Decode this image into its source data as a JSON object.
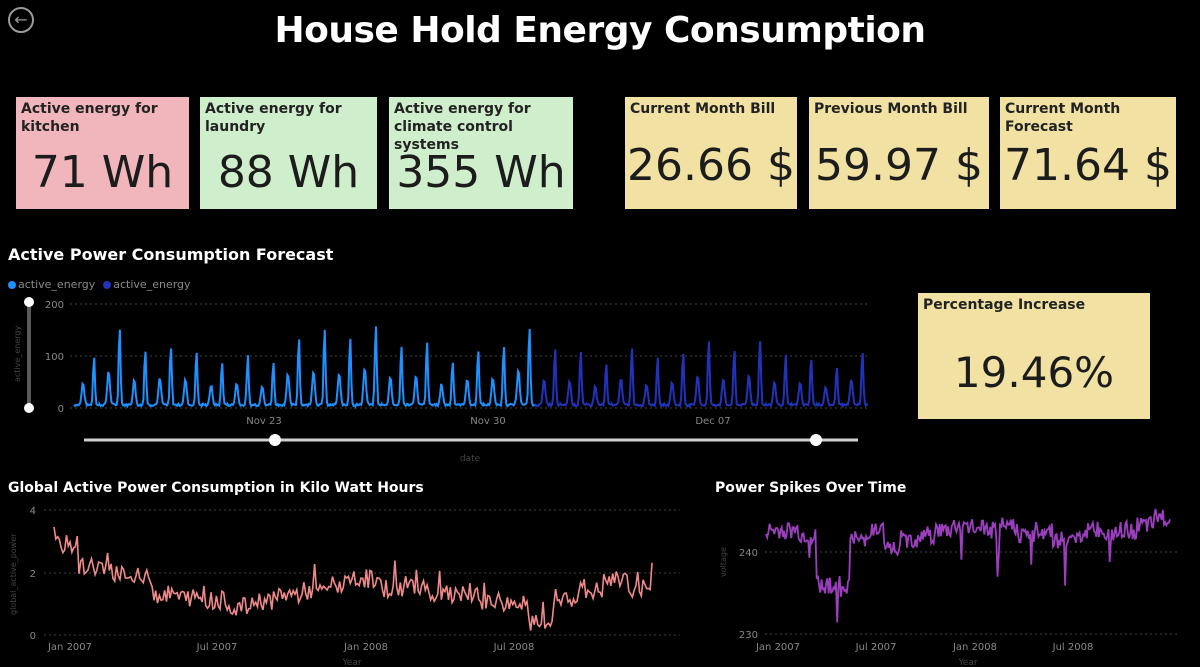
{
  "header": {
    "title": "House Hold Energy Consumption",
    "back_icon": "arrow-left-circle-icon"
  },
  "kpis": {
    "kitchen": {
      "label": "Active energy for kitchen",
      "value": "71 Wh",
      "color": "#f0b6bc"
    },
    "laundry": {
      "label": "Active energy for laundry",
      "value": "88 Wh",
      "color": "#cfeecb"
    },
    "climate": {
      "label": "Active energy for climate control systems",
      "value": "355 Wh",
      "color": "#cfeecb"
    },
    "current_bill": {
      "label": "Current Month Bill",
      "value": "26.66 $",
      "color": "#f1e1a2"
    },
    "previous_bill": {
      "label": "Previous Month Bill",
      "value": "59.97 $",
      "color": "#f1e1a2"
    },
    "forecast_bill": {
      "label": "Current Month Forecast",
      "value": "71.64 $",
      "color": "#f1e1a2"
    },
    "percentage": {
      "label": "Percentage Increase",
      "value": "19.46%",
      "color": "#f1e1a2"
    }
  },
  "forecast_chart": {
    "title": "Active Power Consumption Forecast",
    "legend": [
      {
        "name": "active_energy",
        "color": "#1e90ff"
      },
      {
        "name": "active_energy",
        "color": "#2233bb"
      }
    ],
    "ylabel": "active_energy",
    "xlabel": "date",
    "yticks": [
      "0",
      "100",
      "200"
    ],
    "xticks": [
      "Nov 23",
      "Nov 30",
      "Dec 07"
    ]
  },
  "global_chart": {
    "title": "Global Active Power Consumption in Kilo Watt Hours",
    "ylabel": "global_active_power",
    "xlabel": "Year",
    "yticks": [
      "0",
      "2",
      "4"
    ],
    "xticks": [
      "Jan 2007",
      "Jul 2007",
      "Jan 2008",
      "Jul 2008"
    ]
  },
  "spikes_chart": {
    "title": "Power Spikes Over Time",
    "ylabel": "voltage",
    "xlabel": "Year",
    "yticks": [
      "230",
      "240"
    ],
    "xticks": [
      "Jan 2007",
      "Jul 2007",
      "Jan 2008",
      "Jul 2008"
    ]
  },
  "chart_data": [
    {
      "type": "line",
      "title": "Active Power Consumption Forecast",
      "xlabel": "date",
      "ylabel": "active_energy",
      "ylim": [
        0,
        200
      ],
      "x_range": [
        "Nov 16",
        "Dec 14"
      ],
      "series": [
        {
          "name": "active_energy",
          "color": "#1e90ff",
          "daily_peaks": [
            95,
            150,
            108,
            115,
            110,
            85,
            95,
            85,
            135,
            150,
            135,
            160,
            120,
            125,
            90,
            112,
            115,
            155
          ]
        },
        {
          "name": "active_energy",
          "color": "#2233bb",
          "daily_peaks": [
            110,
            105,
            80,
            115,
            90,
            100,
            130,
            110,
            130,
            100,
            95,
            80,
            110
          ]
        }
      ]
    },
    {
      "type": "line",
      "title": "Global Active Power Consumption in Kilo Watt Hours",
      "xlabel": "Year",
      "ylabel": "global_active_power",
      "ylim": [
        0,
        4
      ],
      "x_range": [
        "Dec 2006",
        "Nov 2008"
      ],
      "series": [
        {
          "name": "global_active_power",
          "color": "#f08a8a",
          "monthly_mean": [
            2.9,
            2.2,
            2.0,
            1.8,
            1.3,
            1.2,
            1.1,
            0.9,
            1.1,
            1.3,
            1.4,
            1.6,
            1.8,
            1.5,
            1.6,
            1.3,
            1.2,
            1.1,
            1.0,
            0.35,
            1.2,
            1.4,
            1.7,
            1.5
          ]
        }
      ]
    },
    {
      "type": "line",
      "title": "Power Spikes Over Time",
      "xlabel": "Year",
      "ylabel": "voltage",
      "ylim": [
        230,
        245
      ],
      "x_range": [
        "Dec 2006",
        "Nov 2008"
      ],
      "series": [
        {
          "name": "voltage",
          "color": "#9b3fbf",
          "monthly_mean": [
            241.5,
            241.5,
            241.0,
            235.5,
            235.5,
            240.5,
            241.5,
            239.5,
            240.5,
            241.0,
            241.5,
            242.0,
            241.8,
            241.5,
            242.0,
            241.0,
            241.5,
            240.5,
            241.0,
            241.5,
            241.0,
            241.5,
            242.0,
            243.0
          ]
        }
      ]
    }
  ]
}
